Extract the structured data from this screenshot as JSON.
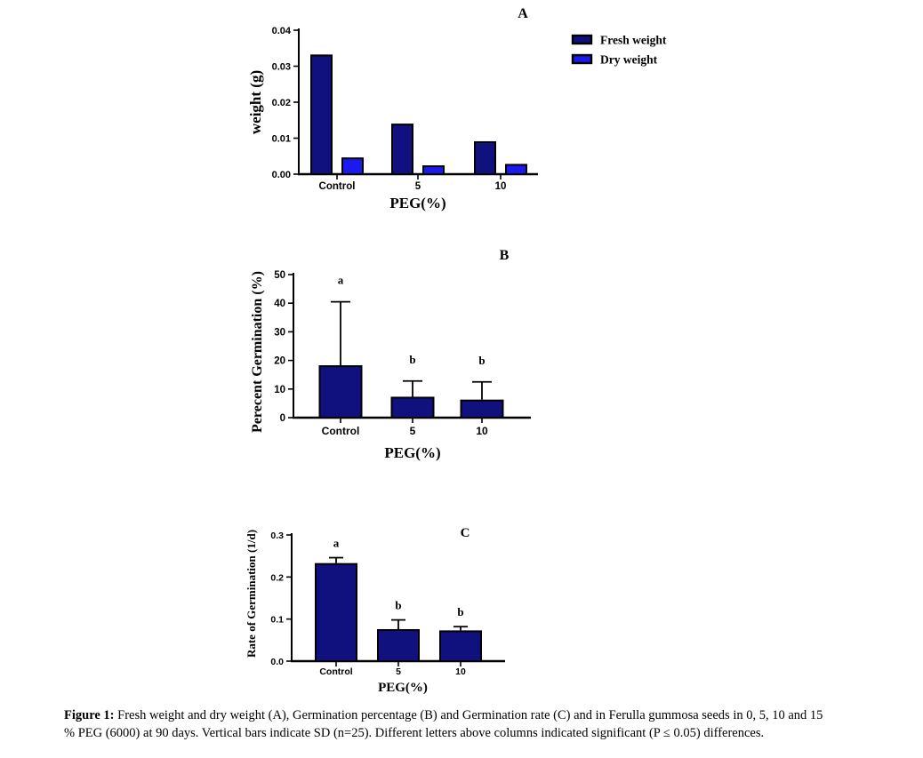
{
  "caption": {
    "label": "Figure 1:",
    "line1": " Fresh weight and dry weight (A), Germination percentage (B) and Germination rate (C) and in Ferulla gummosa seeds in 0, 5, 10 and 15",
    "line2": "% PEG (6000) at 90 days. Vertical bars indicate SD (n=25). Different letters above columns indicated significant (P ≤ 0.05) differences."
  },
  "colors": {
    "navy": "#10107f",
    "blue": "#1a1aee",
    "axis": "#000000",
    "background": "#ffffff"
  },
  "chart_data": [
    {
      "id": "A",
      "type": "bar",
      "panel_label": "A",
      "xlabel": "PEG(%)",
      "ylabel": "weight (g)",
      "categories": [
        "Control",
        "5",
        "10"
      ],
      "series": [
        {
          "name": "Fresh weight",
          "color": "#10107f",
          "values": [
            0.033,
            0.0138,
            0.0089
          ]
        },
        {
          "name": "Dry weight",
          "color": "#1a1aee",
          "values": [
            0.0044,
            0.0022,
            0.0026
          ]
        }
      ],
      "ylim": [
        0,
        0.04
      ],
      "yticks": [
        "0.00",
        "0.01",
        "0.02",
        "0.03",
        "0.04"
      ],
      "grid": false,
      "legend_position": "right-top"
    },
    {
      "id": "B",
      "type": "bar",
      "panel_label": "B",
      "xlabel": "PEG(%)",
      "ylabel": "Perecent Germination (%)",
      "categories": [
        "Control",
        "5",
        "10"
      ],
      "values": [
        18,
        7,
        6
      ],
      "sd_up": [
        22.5,
        5.8,
        6.5
      ],
      "letters": [
        "a",
        "b",
        "b"
      ],
      "bar_color": "#10107f",
      "ylim": [
        0,
        50
      ],
      "yticks": [
        "0",
        "10",
        "20",
        "30",
        "40",
        "50"
      ],
      "grid": false
    },
    {
      "id": "C",
      "type": "bar",
      "panel_label": "C",
      "xlabel": "PEG(%)",
      "ylabel": "Rate of Germination (1/d)",
      "categories": [
        "Control",
        "5",
        "10"
      ],
      "values": [
        0.231,
        0.074,
        0.071
      ],
      "sd_up": [
        0.015,
        0.024,
        0.011
      ],
      "letters": [
        "a",
        "b",
        "b"
      ],
      "bar_color": "#10107f",
      "ylim": [
        0,
        0.3
      ],
      "yticks": [
        "0.0",
        "0.1",
        "0.2",
        "0.3"
      ],
      "grid": false
    }
  ]
}
